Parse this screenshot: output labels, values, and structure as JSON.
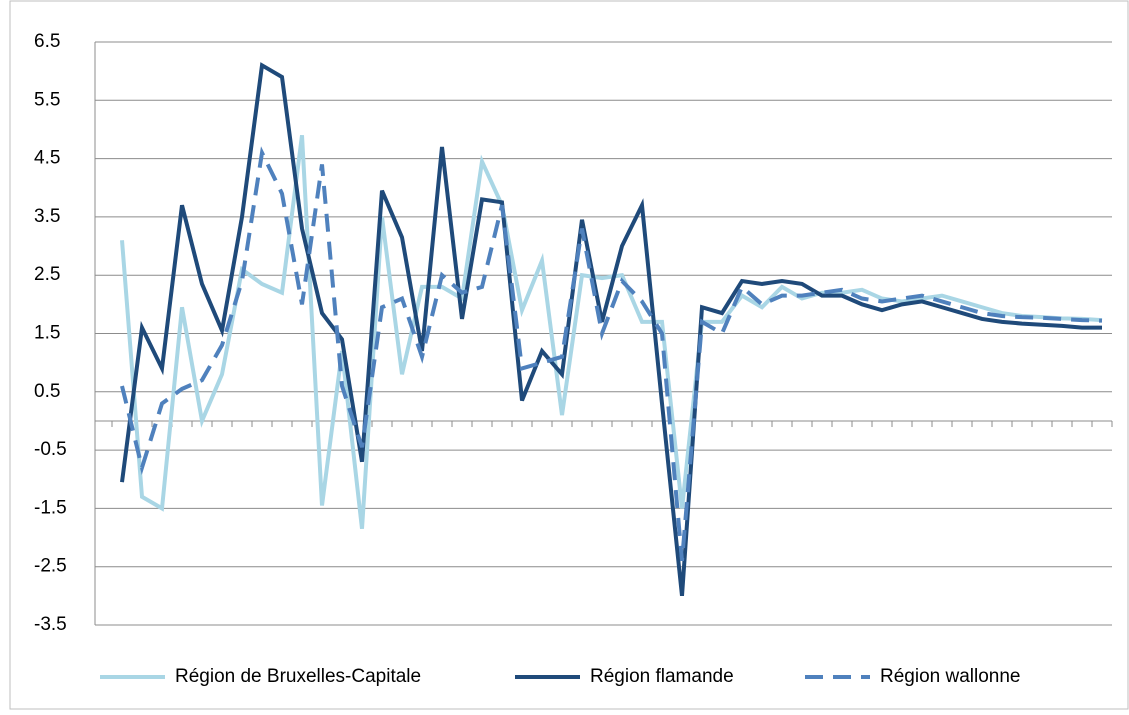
{
  "chart_data": {
    "type": "line",
    "categories": [
      null,
      null,
      null,
      null,
      null,
      null,
      null,
      null,
      null,
      null,
      null,
      null,
      null,
      null,
      null,
      null,
      null,
      null,
      null,
      null,
      null,
      null,
      null,
      null,
      null,
      null,
      null,
      null,
      null,
      null,
      null,
      null,
      null,
      null,
      null,
      null,
      null,
      null,
      null,
      null,
      null,
      null,
      null,
      null,
      null,
      null,
      null,
      null,
      null,
      null
    ],
    "series": [
      {
        "name": "Région de Bruxelles-Capitale",
        "color": "#a9d6e5",
        "dash": false,
        "values": [
          3.1,
          -1.3,
          -1.5,
          1.95,
          0.0,
          0.8,
          2.6,
          2.35,
          2.2,
          4.9,
          -1.45,
          1.2,
          -1.85,
          3.5,
          0.8,
          2.3,
          2.3,
          2.1,
          4.45,
          3.7,
          1.9,
          2.75,
          0.1,
          2.5,
          2.45,
          2.5,
          1.7,
          1.7,
          -1.5,
          1.7,
          1.7,
          2.15,
          1.95,
          2.3,
          2.1,
          2.2,
          2.2,
          2.25,
          2.1,
          2.05,
          2.1,
          2.15,
          2.05,
          1.95,
          1.85,
          1.8,
          1.78,
          1.76,
          1.75,
          1.73
        ]
      },
      {
        "name": "Région flamande",
        "color": "#1f4a7a",
        "dash": false,
        "values": [
          -1.05,
          1.6,
          0.9,
          3.7,
          2.35,
          1.55,
          3.5,
          6.1,
          5.9,
          3.3,
          1.85,
          1.4,
          -0.7,
          3.95,
          3.15,
          1.2,
          4.7,
          1.75,
          3.8,
          3.75,
          0.35,
          1.2,
          0.8,
          3.45,
          1.7,
          3.0,
          3.7,
          0.3,
          -3.0,
          1.95,
          1.85,
          2.4,
          2.35,
          2.4,
          2.35,
          2.15,
          2.15,
          2.0,
          1.9,
          2.0,
          2.05,
          1.95,
          1.85,
          1.75,
          1.7,
          1.67,
          1.65,
          1.63,
          1.6,
          1.6
        ]
      },
      {
        "name": "Région wallonne",
        "color": "#4f81bd",
        "dash": true,
        "values": [
          0.6,
          -0.8,
          0.3,
          0.55,
          0.7,
          1.3,
          2.4,
          4.6,
          3.9,
          2.0,
          4.4,
          0.6,
          -0.45,
          1.95,
          2.1,
          1.1,
          2.5,
          2.2,
          2.3,
          3.7,
          0.9,
          1.0,
          1.1,
          3.3,
          1.5,
          2.4,
          2.05,
          1.5,
          -2.4,
          1.7,
          1.5,
          2.3,
          2.0,
          2.15,
          2.15,
          2.2,
          2.25,
          2.1,
          2.05,
          2.1,
          2.15,
          2.05,
          1.95,
          1.85,
          1.8,
          1.78,
          1.77,
          1.75,
          1.73,
          1.72
        ]
      }
    ],
    "ylim": [
      -3.5,
      6.5
    ],
    "yticks": [
      -3.5,
      -2.5,
      -1.5,
      -0.5,
      0.5,
      1.5,
      2.5,
      3.5,
      4.5,
      5.5,
      6.5
    ],
    "grid": true,
    "legend": "bottom"
  }
}
